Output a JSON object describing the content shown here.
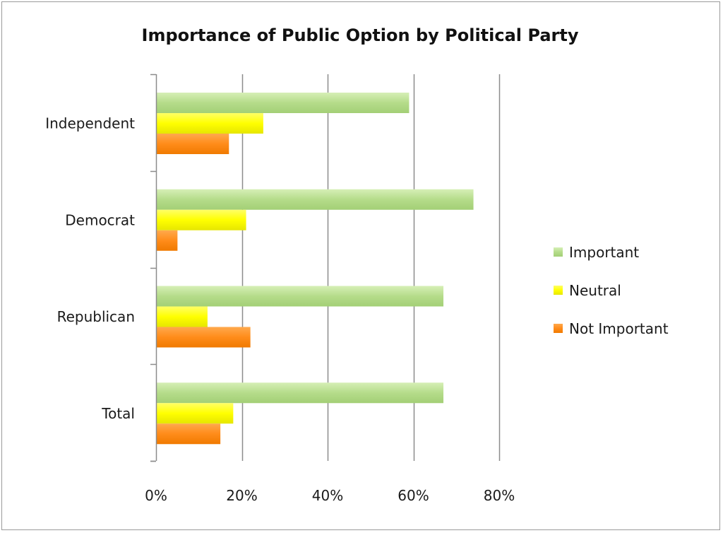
{
  "chart_data": {
    "type": "bar",
    "orientation": "horizontal",
    "title": "Importance of Public Option by Political Party",
    "categories": [
      "Independent",
      "Democrat",
      "Republican",
      "Total"
    ],
    "series": [
      {
        "name": "Important",
        "color": "#b5dc8a",
        "values": [
          59,
          74,
          67,
          67
        ]
      },
      {
        "name": "Neutral",
        "color": "#ffff00",
        "values": [
          25,
          21,
          12,
          18
        ]
      },
      {
        "name": "Not Important",
        "color": "#ff8c1a",
        "values": [
          17,
          5,
          22,
          15
        ]
      }
    ],
    "xlim": [
      0,
      80
    ],
    "xticks": [
      "0%",
      "20%",
      "40%",
      "60%",
      "80%"
    ],
    "xlabel": "",
    "ylabel": "",
    "grid": true,
    "legend": "right"
  }
}
